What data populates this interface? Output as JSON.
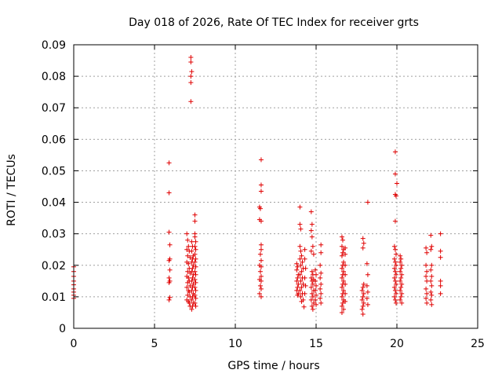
{
  "chart_data": {
    "type": "scatter",
    "title": "Day 018 of 2026, Rate Of TEC Index for receiver grts",
    "xlabel": "GPS time / hours",
    "ylabel": "ROTI / TECUs",
    "xlim": [
      0,
      25
    ],
    "ylim": [
      0,
      0.09
    ],
    "xticks": [
      0,
      5,
      10,
      15,
      20,
      25
    ],
    "yticks": [
      0,
      0.01,
      0.02,
      0.03,
      0.04,
      0.05,
      0.06,
      0.07,
      0.08,
      0.09
    ],
    "xtick_labels": [
      "0",
      "5",
      "10",
      "15",
      "20",
      "25"
    ],
    "ytick_labels": [
      "0",
      "0.01",
      "0.02",
      "0.03",
      "0.04",
      "0.05",
      "0.06",
      "0.07",
      "0.08",
      "0.09"
    ],
    "grid": true,
    "marker": "+",
    "color": "#e00000",
    "series": [
      {
        "points": [
          [
            0.0,
            0.0195
          ],
          [
            0.0,
            0.018
          ],
          [
            0.0,
            0.0165
          ],
          [
            0.0,
            0.015
          ],
          [
            0.0,
            0.0138
          ],
          [
            0.0,
            0.0125
          ],
          [
            0.0,
            0.0115
          ],
          [
            0.0,
            0.0105
          ],
          [
            0.0,
            0.0095
          ],
          [
            5.9,
            0.0525
          ],
          [
            5.9,
            0.043
          ],
          [
            5.9,
            0.0305
          ],
          [
            5.95,
            0.0265
          ],
          [
            5.95,
            0.022
          ],
          [
            5.9,
            0.0215
          ],
          [
            5.95,
            0.0185
          ],
          [
            5.9,
            0.016
          ],
          [
            5.95,
            0.015
          ],
          [
            5.9,
            0.0145
          ],
          [
            5.95,
            0.0098
          ],
          [
            5.9,
            0.009
          ],
          [
            7.0,
            0.03
          ],
          [
            7.05,
            0.028
          ],
          [
            7.1,
            0.026
          ],
          [
            7.0,
            0.025
          ],
          [
            7.15,
            0.0245
          ],
          [
            7.05,
            0.023
          ],
          [
            7.2,
            0.0225
          ],
          [
            7.0,
            0.021
          ],
          [
            7.1,
            0.0205
          ],
          [
            7.15,
            0.019
          ],
          [
            7.05,
            0.018
          ],
          [
            7.2,
            0.0175
          ],
          [
            7.0,
            0.0165
          ],
          [
            7.1,
            0.016
          ],
          [
            7.15,
            0.015
          ],
          [
            7.05,
            0.0145
          ],
          [
            7.2,
            0.0135
          ],
          [
            7.0,
            0.013
          ],
          [
            7.1,
            0.012
          ],
          [
            7.15,
            0.0115
          ],
          [
            7.05,
            0.0105
          ],
          [
            7.2,
            0.01
          ],
          [
            7.0,
            0.009
          ],
          [
            7.1,
            0.0085
          ],
          [
            7.15,
            0.008
          ],
          [
            7.2,
            0.007
          ],
          [
            7.25,
            0.086
          ],
          [
            7.25,
            0.0845
          ],
          [
            7.3,
            0.0815
          ],
          [
            7.25,
            0.08
          ],
          [
            7.25,
            0.078
          ],
          [
            7.25,
            0.072
          ],
          [
            7.3,
            0.0275
          ],
          [
            7.35,
            0.026
          ],
          [
            7.3,
            0.0245
          ],
          [
            7.4,
            0.023
          ],
          [
            7.35,
            0.022
          ],
          [
            7.3,
            0.021
          ],
          [
            7.4,
            0.02
          ],
          [
            7.35,
            0.019
          ],
          [
            7.3,
            0.018
          ],
          [
            7.4,
            0.017
          ],
          [
            7.35,
            0.016
          ],
          [
            7.3,
            0.015
          ],
          [
            7.4,
            0.014
          ],
          [
            7.35,
            0.013
          ],
          [
            7.3,
            0.012
          ],
          [
            7.4,
            0.011
          ],
          [
            7.35,
            0.01
          ],
          [
            7.3,
            0.009
          ],
          [
            7.4,
            0.008
          ],
          [
            7.35,
            0.007
          ],
          [
            7.3,
            0.006
          ],
          [
            7.5,
            0.036
          ],
          [
            7.5,
            0.034
          ],
          [
            7.5,
            0.03
          ],
          [
            7.5,
            0.029
          ],
          [
            7.55,
            0.0275
          ],
          [
            7.5,
            0.026
          ],
          [
            7.55,
            0.025
          ],
          [
            7.5,
            0.0235
          ],
          [
            7.55,
            0.022
          ],
          [
            7.5,
            0.021
          ],
          [
            7.55,
            0.0195
          ],
          [
            7.5,
            0.018
          ],
          [
            7.55,
            0.017
          ],
          [
            7.5,
            0.0155
          ],
          [
            7.55,
            0.0145
          ],
          [
            7.5,
            0.013
          ],
          [
            7.55,
            0.012
          ],
          [
            7.5,
            0.0105
          ],
          [
            7.55,
            0.0095
          ],
          [
            7.5,
            0.008
          ],
          [
            7.55,
            0.007
          ],
          [
            11.6,
            0.0535
          ],
          [
            11.6,
            0.0455
          ],
          [
            11.6,
            0.0435
          ],
          [
            11.5,
            0.0385
          ],
          [
            11.55,
            0.038
          ],
          [
            11.5,
            0.0345
          ],
          [
            11.6,
            0.034
          ],
          [
            11.6,
            0.0265
          ],
          [
            11.6,
            0.025
          ],
          [
            11.55,
            0.0235
          ],
          [
            11.6,
            0.0215
          ],
          [
            11.5,
            0.02
          ],
          [
            11.6,
            0.0195
          ],
          [
            11.55,
            0.018
          ],
          [
            11.6,
            0.0165
          ],
          [
            11.5,
            0.0155
          ],
          [
            11.6,
            0.015
          ],
          [
            11.55,
            0.0135
          ],
          [
            11.6,
            0.0125
          ],
          [
            11.5,
            0.011
          ],
          [
            11.6,
            0.01
          ],
          [
            13.8,
            0.0205
          ],
          [
            13.85,
            0.0195
          ],
          [
            13.8,
            0.0185
          ],
          [
            13.9,
            0.017
          ],
          [
            13.85,
            0.016
          ],
          [
            13.8,
            0.015
          ],
          [
            13.9,
            0.014
          ],
          [
            13.85,
            0.013
          ],
          [
            13.8,
            0.012
          ],
          [
            13.9,
            0.011
          ],
          [
            13.85,
            0.0105
          ],
          [
            14.0,
            0.0385
          ],
          [
            14.0,
            0.033
          ],
          [
            14.05,
            0.0315
          ],
          [
            14.0,
            0.026
          ],
          [
            14.05,
            0.0245
          ],
          [
            14.1,
            0.023
          ],
          [
            14.0,
            0.022
          ],
          [
            14.15,
            0.021
          ],
          [
            14.05,
            0.02
          ],
          [
            14.2,
            0.019
          ],
          [
            14.1,
            0.018
          ],
          [
            14.0,
            0.017
          ],
          [
            14.15,
            0.016
          ],
          [
            14.05,
            0.015
          ],
          [
            14.2,
            0.014
          ],
          [
            14.1,
            0.013
          ],
          [
            14.0,
            0.012
          ],
          [
            14.15,
            0.011
          ],
          [
            14.05,
            0.01
          ],
          [
            14.2,
            0.009
          ],
          [
            14.1,
            0.0085
          ],
          [
            14.25,
            0.0068
          ],
          [
            14.3,
            0.025
          ],
          [
            14.3,
            0.022
          ],
          [
            14.35,
            0.019
          ],
          [
            14.3,
            0.016
          ],
          [
            14.35,
            0.0135
          ],
          [
            14.3,
            0.011
          ],
          [
            14.7,
            0.037
          ],
          [
            14.75,
            0.033
          ],
          [
            14.7,
            0.031
          ],
          [
            14.75,
            0.029
          ],
          [
            14.8,
            0.026
          ],
          [
            14.7,
            0.0245
          ],
          [
            14.85,
            0.0235
          ],
          [
            14.75,
            0.018
          ],
          [
            14.8,
            0.017
          ],
          [
            14.7,
            0.016
          ],
          [
            14.85,
            0.0155
          ],
          [
            14.75,
            0.015
          ],
          [
            14.8,
            0.014
          ],
          [
            14.7,
            0.013
          ],
          [
            14.85,
            0.012
          ],
          [
            14.75,
            0.011
          ],
          [
            14.8,
            0.01
          ],
          [
            14.7,
            0.009
          ],
          [
            14.85,
            0.008
          ],
          [
            14.75,
            0.007
          ],
          [
            14.8,
            0.006
          ],
          [
            14.95,
            0.0185
          ],
          [
            15.0,
            0.017
          ],
          [
            14.95,
            0.015
          ],
          [
            15.0,
            0.0135
          ],
          [
            14.95,
            0.012
          ],
          [
            15.0,
            0.0105
          ],
          [
            14.95,
            0.009
          ],
          [
            15.0,
            0.0075
          ],
          [
            15.3,
            0.0265
          ],
          [
            15.3,
            0.024
          ],
          [
            15.25,
            0.02
          ],
          [
            15.3,
            0.0175
          ],
          [
            15.25,
            0.016
          ],
          [
            15.3,
            0.014
          ],
          [
            15.25,
            0.0125
          ],
          [
            15.3,
            0.011
          ],
          [
            15.25,
            0.0095
          ],
          [
            15.3,
            0.008
          ],
          [
            16.6,
            0.029
          ],
          [
            16.65,
            0.028
          ],
          [
            16.6,
            0.026
          ],
          [
            16.7,
            0.025
          ],
          [
            16.65,
            0.024
          ],
          [
            16.6,
            0.023
          ],
          [
            16.7,
            0.021
          ],
          [
            16.65,
            0.02
          ],
          [
            16.6,
            0.019
          ],
          [
            16.7,
            0.018
          ],
          [
            16.65,
            0.017
          ],
          [
            16.6,
            0.016
          ],
          [
            16.7,
            0.015
          ],
          [
            16.65,
            0.014
          ],
          [
            16.6,
            0.013
          ],
          [
            16.7,
            0.012
          ],
          [
            16.65,
            0.011
          ],
          [
            16.6,
            0.01
          ],
          [
            16.7,
            0.009
          ],
          [
            16.65,
            0.008
          ],
          [
            16.6,
            0.007
          ],
          [
            16.7,
            0.006
          ],
          [
            16.6,
            0.005
          ],
          [
            16.8,
            0.0255
          ],
          [
            16.8,
            0.0235
          ],
          [
            16.8,
            0.02
          ],
          [
            16.8,
            0.017
          ],
          [
            16.8,
            0.014
          ],
          [
            16.8,
            0.011
          ],
          [
            16.8,
            0.0085
          ],
          [
            17.9,
            0.0285
          ],
          [
            17.95,
            0.027
          ],
          [
            17.9,
            0.0255
          ],
          [
            17.95,
            0.014
          ],
          [
            17.9,
            0.013
          ],
          [
            17.85,
            0.012
          ],
          [
            17.95,
            0.011
          ],
          [
            17.9,
            0.01
          ],
          [
            17.85,
            0.009
          ],
          [
            17.95,
            0.008
          ],
          [
            17.9,
            0.007
          ],
          [
            17.85,
            0.006
          ],
          [
            17.9,
            0.0045
          ],
          [
            18.2,
            0.04
          ],
          [
            18.15,
            0.0205
          ],
          [
            18.2,
            0.017
          ],
          [
            18.15,
            0.0135
          ],
          [
            18.2,
            0.0115
          ],
          [
            18.15,
            0.0095
          ],
          [
            18.2,
            0.0075
          ],
          [
            19.9,
            0.056
          ],
          [
            19.9,
            0.049
          ],
          [
            20.0,
            0.046
          ],
          [
            19.9,
            0.0425
          ],
          [
            19.95,
            0.042
          ],
          [
            19.9,
            0.034
          ],
          [
            19.85,
            0.026
          ],
          [
            19.9,
            0.025
          ],
          [
            19.95,
            0.0235
          ],
          [
            19.85,
            0.022
          ],
          [
            19.9,
            0.021
          ],
          [
            19.95,
            0.02
          ],
          [
            19.85,
            0.019
          ],
          [
            19.9,
            0.018
          ],
          [
            19.95,
            0.017
          ],
          [
            19.85,
            0.016
          ],
          [
            19.9,
            0.015
          ],
          [
            19.95,
            0.014
          ],
          [
            19.85,
            0.013
          ],
          [
            19.9,
            0.012
          ],
          [
            19.95,
            0.011
          ],
          [
            19.85,
            0.01
          ],
          [
            19.9,
            0.009
          ],
          [
            19.95,
            0.008
          ],
          [
            20.2,
            0.023
          ],
          [
            20.25,
            0.022
          ],
          [
            20.2,
            0.021
          ],
          [
            20.3,
            0.02
          ],
          [
            20.25,
            0.019
          ],
          [
            20.2,
            0.018
          ],
          [
            20.3,
            0.017
          ],
          [
            20.25,
            0.016
          ],
          [
            20.2,
            0.015
          ],
          [
            20.3,
            0.014
          ],
          [
            20.25,
            0.013
          ],
          [
            20.2,
            0.012
          ],
          [
            20.3,
            0.011
          ],
          [
            20.25,
            0.01
          ],
          [
            20.2,
            0.009
          ],
          [
            20.3,
            0.008
          ],
          [
            21.8,
            0.0255
          ],
          [
            21.85,
            0.024
          ],
          [
            21.8,
            0.02
          ],
          [
            21.85,
            0.018
          ],
          [
            21.8,
            0.0165
          ],
          [
            21.85,
            0.015
          ],
          [
            21.8,
            0.0125
          ],
          [
            21.85,
            0.011
          ],
          [
            21.8,
            0.0095
          ],
          [
            21.85,
            0.008
          ],
          [
            22.1,
            0.0295
          ],
          [
            22.15,
            0.026
          ],
          [
            22.1,
            0.025
          ],
          [
            22.15,
            0.02
          ],
          [
            22.1,
            0.0185
          ],
          [
            22.15,
            0.0165
          ],
          [
            22.1,
            0.015
          ],
          [
            22.15,
            0.0135
          ],
          [
            22.1,
            0.0115
          ],
          [
            22.15,
            0.0105
          ],
          [
            22.1,
            0.009
          ],
          [
            22.15,
            0.0075
          ],
          [
            22.7,
            0.03
          ],
          [
            22.7,
            0.0245
          ],
          [
            22.7,
            0.0225
          ],
          [
            22.7,
            0.015
          ],
          [
            22.7,
            0.0135
          ],
          [
            22.7,
            0.011
          ]
        ]
      }
    ]
  }
}
